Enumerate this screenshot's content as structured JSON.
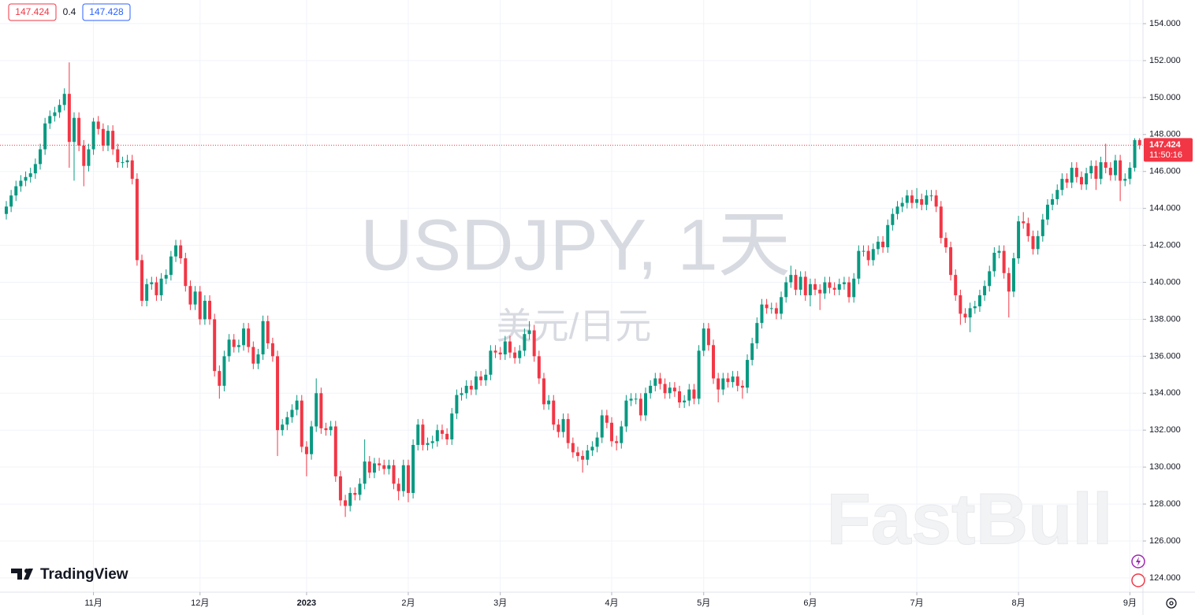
{
  "header": {
    "ohlc_left": "147.424",
    "change": "0.4",
    "ohlc_right": "147.428"
  },
  "branding": {
    "logo": "TradingView",
    "watermark": "FastBull"
  },
  "chart_data": {
    "type": "candlestick",
    "title": "USDJPY, 1天",
    "subtitle": "美元/日元",
    "up_color": "#089981",
    "down_color": "#f23645",
    "grid": true,
    "last_price": {
      "value": 147.424,
      "label": "147.424"
    },
    "countdown": "11:50:16",
    "xlim": [
      -1.3,
      234.7
    ],
    "xticks": [
      {
        "value": 18,
        "label": "11月"
      },
      {
        "value": 40,
        "label": "12月"
      },
      {
        "value": 62,
        "label": "2023"
      },
      {
        "value": 83,
        "label": "2月"
      },
      {
        "value": 102,
        "label": "3月"
      },
      {
        "value": 125,
        "label": "4月"
      },
      {
        "value": 144,
        "label": "5月"
      },
      {
        "value": 166,
        "label": "6月"
      },
      {
        "value": 188,
        "label": "7月"
      },
      {
        "value": 209,
        "label": "8月"
      },
      {
        "value": 232,
        "label": "9月"
      }
    ],
    "ylim": [
      123.23,
      155.28
    ],
    "yticks": [
      {
        "value": 124,
        "label": "124.000"
      },
      {
        "value": 126,
        "label": "126.000"
      },
      {
        "value": 128,
        "label": "128.000"
      },
      {
        "value": 130,
        "label": "130.000"
      },
      {
        "value": 132,
        "label": "132.000"
      },
      {
        "value": 134,
        "label": "134.000"
      },
      {
        "value": 136,
        "label": "136.000"
      },
      {
        "value": 138,
        "label": "138.000"
      },
      {
        "value": 140,
        "label": "140.000"
      },
      {
        "value": 142,
        "label": "142.000"
      },
      {
        "value": 144,
        "label": "144.000"
      },
      {
        "value": 146,
        "label": "146.000"
      },
      {
        "value": 148,
        "label": "148.000"
      },
      {
        "value": 150,
        "label": "150.000"
      },
      {
        "value": 152,
        "label": "152.000"
      },
      {
        "value": 154,
        "label": "154.000"
      }
    ],
    "open": [
      143.7,
      144.1,
      144.7,
      145.2,
      145.5,
      145.7,
      145.9,
      146.4,
      147.2,
      148.6,
      149.0,
      149.2,
      149.6,
      150.2,
      147.6,
      148.9,
      147.4,
      146.3,
      147.2,
      148.7,
      148.3,
      147.4,
      148.2,
      147.2,
      146.5,
      146.5,
      146.6,
      145.6,
      141.2,
      139.0,
      139.9,
      140.0,
      139.3,
      140.2,
      140.4,
      141.4,
      142.0,
      141.3,
      139.8,
      138.8,
      139.5,
      138.0,
      139.0,
      138.0,
      135.2,
      134.4,
      136.0,
      136.9,
      136.5,
      136.6,
      137.5,
      136.5,
      135.6,
      136.1,
      137.9,
      136.7,
      136.0,
      132.0,
      132.3,
      132.7,
      133.1,
      133.6,
      131.1,
      130.7,
      132.2,
      134.0,
      132.1,
      132.0,
      132.2,
      129.5,
      128.2,
      127.9,
      128.6,
      128.5,
      129.1,
      130.3,
      129.7,
      130.2,
      130.1,
      129.9,
      130.1,
      129.1,
      128.7,
      130.1,
      128.6,
      131.2,
      132.3,
      131.2,
      131.3,
      131.4,
      132.0,
      131.8,
      131.5,
      132.9,
      133.9,
      134.0,
      134.4,
      134.2,
      134.9,
      134.7,
      135.0,
      136.3,
      136.2,
      136.1,
      136.8,
      136.2,
      135.9,
      136.3,
      137.2,
      137.4,
      136.0,
      134.8,
      133.4,
      133.6,
      132.3,
      131.9,
      132.6,
      131.3,
      130.8,
      130.6,
      130.4,
      130.9,
      131.1,
      131.6,
      132.8,
      132.4,
      131.4,
      131.3,
      132.2,
      133.6,
      133.7,
      133.7,
      132.8,
      134.0,
      134.4,
      134.8,
      134.5,
      134.0,
      134.3,
      134.1,
      133.5,
      133.6,
      134.2,
      133.7,
      136.3,
      137.5,
      136.6,
      134.8,
      134.2,
      134.8,
      134.6,
      134.9,
      134.4,
      134.3,
      135.8,
      136.7,
      137.8,
      138.8,
      138.6,
      138.6,
      138.3,
      139.2,
      140.0,
      140.4,
      139.6,
      140.3,
      139.3,
      139.9,
      139.6,
      139.4,
      140.0,
      139.7,
      139.6,
      139.9,
      140.0,
      139.2,
      140.2,
      141.7,
      141.7,
      141.2,
      141.8,
      142.2,
      141.9,
      143.1,
      143.7,
      144.1,
      144.3,
      144.7,
      144.3,
      144.5,
      144.2,
      144.7,
      144.7,
      144.1,
      142.4,
      141.9,
      140.4,
      139.3,
      138.3,
      138.1,
      138.6,
      138.7,
      139.3,
      139.8,
      140.6,
      141.6,
      141.7,
      140.5,
      139.5,
      141.3,
      143.3,
      143.2,
      142.5,
      141.8,
      142.5,
      143.4,
      144.2,
      144.5,
      145.0,
      145.6,
      145.4,
      146.2,
      145.7,
      145.3,
      145.9,
      146.3,
      145.6,
      146.5,
      146.2,
      145.8,
      146.6,
      145.5,
      145.6,
      146.2,
      147.7
    ],
    "high": [
      144.4,
      145.0,
      145.5,
      145.8,
      146.0,
      146.2,
      146.7,
      147.5,
      148.9,
      149.3,
      149.5,
      149.9,
      150.5,
      151.9,
      149.2,
      149.2,
      147.7,
      147.5,
      148.9,
      149.0,
      148.6,
      148.5,
      148.5,
      147.5,
      146.8,
      146.9,
      146.9,
      145.9,
      141.5,
      140.2,
      140.3,
      140.3,
      140.5,
      140.7,
      141.7,
      142.3,
      142.3,
      141.6,
      140.1,
      139.8,
      139.8,
      139.3,
      139.3,
      138.3,
      135.5,
      136.3,
      137.2,
      137.2,
      136.9,
      137.8,
      137.8,
      136.8,
      136.4,
      138.2,
      138.2,
      137.0,
      136.3,
      132.6,
      133.0,
      133.4,
      133.9,
      133.9,
      131.4,
      132.5,
      134.8,
      134.3,
      132.4,
      132.5,
      132.5,
      129.8,
      128.5,
      128.9,
      128.9,
      129.4,
      131.5,
      130.6,
      130.5,
      130.5,
      130.4,
      130.4,
      130.4,
      129.4,
      130.4,
      130.4,
      131.5,
      132.6,
      132.6,
      131.6,
      131.7,
      132.3,
      132.3,
      132.1,
      133.2,
      134.2,
      134.3,
      134.7,
      134.7,
      135.2,
      135.2,
      135.3,
      136.6,
      136.6,
      136.5,
      137.1,
      137.1,
      136.5,
      136.6,
      137.5,
      137.9,
      137.7,
      136.3,
      135.1,
      133.9,
      133.9,
      132.6,
      132.9,
      132.9,
      131.6,
      131.1,
      130.9,
      131.2,
      131.4,
      131.9,
      133.1,
      133.1,
      132.7,
      131.7,
      132.5,
      133.9,
      134.0,
      134.0,
      134.0,
      134.3,
      134.7,
      135.1,
      135.1,
      134.8,
      134.6,
      134.6,
      134.4,
      133.9,
      134.5,
      134.5,
      136.6,
      137.8,
      137.8,
      136.9,
      135.1,
      135.1,
      135.1,
      135.2,
      135.2,
      134.7,
      136.1,
      137.0,
      138.1,
      139.1,
      139.1,
      138.9,
      138.9,
      139.5,
      140.3,
      140.9,
      140.7,
      140.6,
      140.6,
      140.2,
      140.2,
      139.9,
      140.3,
      140.3,
      140.0,
      140.2,
      140.3,
      140.3,
      140.5,
      142.0,
      142.0,
      142.0,
      142.1,
      142.5,
      142.5,
      143.4,
      144.0,
      144.4,
      144.6,
      145.0,
      145.0,
      145.1,
      144.8,
      145.0,
      145.0,
      145.0,
      144.4,
      142.7,
      142.2,
      140.7,
      139.6,
      138.6,
      138.9,
      139.0,
      139.6,
      140.1,
      140.9,
      141.9,
      142.0,
      142.0,
      140.8,
      141.6,
      143.6,
      143.8,
      143.5,
      142.8,
      142.8,
      143.7,
      144.5,
      144.8,
      145.3,
      145.9,
      145.9,
      146.5,
      146.5,
      146.0,
      146.2,
      146.6,
      146.6,
      146.8,
      147.5,
      146.5,
      146.9,
      146.9,
      145.9,
      146.5,
      147.8,
      147.8
    ],
    "low": [
      143.4,
      143.8,
      144.4,
      144.9,
      145.2,
      145.4,
      145.6,
      146.1,
      146.9,
      148.3,
      148.7,
      148.9,
      149.3,
      146.2,
      145.5,
      147.1,
      145.2,
      146.0,
      146.9,
      148.0,
      147.1,
      147.1,
      146.9,
      146.2,
      146.2,
      146.2,
      145.3,
      140.9,
      138.7,
      138.7,
      139.6,
      139.0,
      139.0,
      139.9,
      140.1,
      141.1,
      141.0,
      139.5,
      138.5,
      138.5,
      137.7,
      137.7,
      137.7,
      134.9,
      133.7,
      134.1,
      135.7,
      136.2,
      136.2,
      136.3,
      136.2,
      135.3,
      135.3,
      135.8,
      136.4,
      135.7,
      130.6,
      131.7,
      132.0,
      132.4,
      132.8,
      130.8,
      129.5,
      130.4,
      131.9,
      131.8,
      131.7,
      131.7,
      129.2,
      127.9,
      127.3,
      127.6,
      128.2,
      128.2,
      128.8,
      129.4,
      129.4,
      129.8,
      129.6,
      129.6,
      128.8,
      128.2,
      128.4,
      128.1,
      128.3,
      130.9,
      130.9,
      130.9,
      131.0,
      131.1,
      131.5,
      131.2,
      131.2,
      132.6,
      133.6,
      133.7,
      133.9,
      133.9,
      134.4,
      134.4,
      134.7,
      135.9,
      135.8,
      135.8,
      135.9,
      135.6,
      135.6,
      136.0,
      136.9,
      135.7,
      134.5,
      133.1,
      133.1,
      132.0,
      131.6,
      131.6,
      131.0,
      130.5,
      130.3,
      129.7,
      130.1,
      130.6,
      130.8,
      131.3,
      132.1,
      131.1,
      130.9,
      131.0,
      131.9,
      133.3,
      133.4,
      132.5,
      132.5,
      133.7,
      134.1,
      134.2,
      133.7,
      133.7,
      133.8,
      133.2,
      133.2,
      133.3,
      133.4,
      133.4,
      136.0,
      136.3,
      134.5,
      133.5,
      133.9,
      134.3,
      134.3,
      134.1,
      133.7,
      134.0,
      135.5,
      136.4,
      137.5,
      138.3,
      138.3,
      138.0,
      138.0,
      138.9,
      139.7,
      139.3,
      139.3,
      139.0,
      138.7,
      139.3,
      138.5,
      139.1,
      139.4,
      139.3,
      139.3,
      139.6,
      138.9,
      138.9,
      139.9,
      141.4,
      140.9,
      140.9,
      141.5,
      141.6,
      141.6,
      142.8,
      143.4,
      143.8,
      144.0,
      144.0,
      144.0,
      143.9,
      143.9,
      144.4,
      143.8,
      142.1,
      141.6,
      140.1,
      139.0,
      137.7,
      137.8,
      137.3,
      138.3,
      138.4,
      139.0,
      139.5,
      140.3,
      141.3,
      140.2,
      138.1,
      139.2,
      141.0,
      142.9,
      142.2,
      141.5,
      141.5,
      142.2,
      143.1,
      143.9,
      144.2,
      144.7,
      145.1,
      145.1,
      145.4,
      145.0,
      145.0,
      145.6,
      145.0,
      145.3,
      145.9,
      145.5,
      145.5,
      144.4,
      145.2,
      145.3,
      146.0,
      147.2
    ],
    "close": [
      144.1,
      144.7,
      145.2,
      145.5,
      145.7,
      145.9,
      146.4,
      147.2,
      148.6,
      149.0,
      149.2,
      149.6,
      150.2,
      147.6,
      148.9,
      147.4,
      146.3,
      147.2,
      148.7,
      148.3,
      147.4,
      148.2,
      147.2,
      146.5,
      146.5,
      146.6,
      145.6,
      141.2,
      139.0,
      139.9,
      140.0,
      139.3,
      140.2,
      140.4,
      141.4,
      142.0,
      141.3,
      139.8,
      138.8,
      139.5,
      138.0,
      139.0,
      138.0,
      135.2,
      134.4,
      136.0,
      136.9,
      136.5,
      136.6,
      137.5,
      136.5,
      135.6,
      136.1,
      137.9,
      136.7,
      136.0,
      132.0,
      132.3,
      132.7,
      133.1,
      133.6,
      131.1,
      130.7,
      132.2,
      134.0,
      132.1,
      132.0,
      132.2,
      129.5,
      128.2,
      127.9,
      128.6,
      128.5,
      129.1,
      130.3,
      129.7,
      130.2,
      130.1,
      129.9,
      130.1,
      129.1,
      128.7,
      130.1,
      128.6,
      131.2,
      132.3,
      131.2,
      131.3,
      131.4,
      132.0,
      131.8,
      131.5,
      132.9,
      133.9,
      134.0,
      134.4,
      134.2,
      134.9,
      134.7,
      135.0,
      136.3,
      136.2,
      136.1,
      136.8,
      136.2,
      135.9,
      136.3,
      137.2,
      137.4,
      136.0,
      134.8,
      133.4,
      133.6,
      132.3,
      131.9,
      132.6,
      131.3,
      130.8,
      130.6,
      130.4,
      130.9,
      131.1,
      131.6,
      132.8,
      132.4,
      131.4,
      131.3,
      132.2,
      133.6,
      133.7,
      133.7,
      132.8,
      134.0,
      134.4,
      134.8,
      134.5,
      134.0,
      134.3,
      134.1,
      133.5,
      133.6,
      134.2,
      133.7,
      136.3,
      137.5,
      136.6,
      134.8,
      134.2,
      134.8,
      134.6,
      134.9,
      134.4,
      134.3,
      135.8,
      136.7,
      137.8,
      138.8,
      138.6,
      138.6,
      138.3,
      139.2,
      140.0,
      140.4,
      139.6,
      140.3,
      139.3,
      139.9,
      139.6,
      139.4,
      140.0,
      139.7,
      139.6,
      139.9,
      140.0,
      139.2,
      140.2,
      141.7,
      141.7,
      141.2,
      141.8,
      142.2,
      141.9,
      143.1,
      143.7,
      144.1,
      144.3,
      144.7,
      144.3,
      144.5,
      144.2,
      144.7,
      144.7,
      144.1,
      142.4,
      141.9,
      140.4,
      139.3,
      138.3,
      138.1,
      138.6,
      138.7,
      139.3,
      139.8,
      140.6,
      141.6,
      141.7,
      140.5,
      139.5,
      141.3,
      143.3,
      143.2,
      142.5,
      141.8,
      142.5,
      143.4,
      144.2,
      144.5,
      145.0,
      145.6,
      145.4,
      146.2,
      145.7,
      145.3,
      145.9,
      146.3,
      145.6,
      146.5,
      146.2,
      145.8,
      146.6,
      145.5,
      145.6,
      146.2,
      147.7,
      147.424
    ]
  }
}
